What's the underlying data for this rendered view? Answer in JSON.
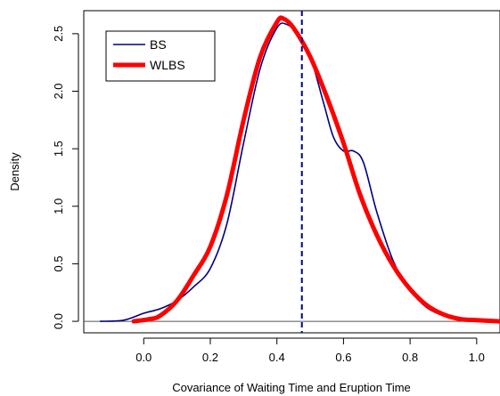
{
  "chart_data": {
    "type": "line",
    "title": "",
    "xlabel": "Covariance of Waiting Time and Eruption Time",
    "ylabel": "Density",
    "xlim": [
      -0.18,
      1.07
    ],
    "ylim": [
      -0.1,
      2.7
    ],
    "xticks": [
      0.0,
      0.2,
      0.4,
      0.6,
      0.8,
      1.0
    ],
    "xtick_labels": [
      "0.0",
      "0.2",
      "0.4",
      "0.6",
      "0.8",
      "1.0"
    ],
    "yticks": [
      0.0,
      0.5,
      1.0,
      1.5,
      2.0,
      2.5
    ],
    "ytick_labels": [
      "0.0",
      "0.5",
      "1.0",
      "1.5",
      "2.0",
      "2.5"
    ],
    "grid": false,
    "legend_position": "top-left",
    "baseline": {
      "y": 0,
      "color": "#555555"
    },
    "vline": {
      "x": 0.475,
      "color": "#000080",
      "style": "dashed"
    },
    "series": [
      {
        "name": "BS",
        "color": "#000080",
        "width": "thin",
        "x": [
          -0.13,
          -0.06,
          0.0,
          0.05,
          0.1,
          0.15,
          0.2,
          0.25,
          0.3,
          0.35,
          0.4,
          0.43,
          0.46,
          0.5,
          0.54,
          0.57,
          0.6,
          0.63,
          0.66,
          0.7,
          0.75,
          0.8,
          0.85,
          0.9,
          0.95,
          1.0,
          1.07
        ],
        "y": [
          0.0,
          0.01,
          0.07,
          0.11,
          0.18,
          0.3,
          0.46,
          0.85,
          1.55,
          2.2,
          2.55,
          2.58,
          2.5,
          2.3,
          1.9,
          1.6,
          1.48,
          1.48,
          1.38,
          0.95,
          0.52,
          0.27,
          0.12,
          0.05,
          0.02,
          0.01,
          0.0
        ]
      },
      {
        "name": "WLBS",
        "color": "#ff0000",
        "width": "thick",
        "x": [
          -0.03,
          0.02,
          0.05,
          0.1,
          0.15,
          0.2,
          0.25,
          0.3,
          0.35,
          0.4,
          0.42,
          0.45,
          0.5,
          0.55,
          0.6,
          0.65,
          0.7,
          0.75,
          0.8,
          0.85,
          0.9,
          0.95,
          1.0,
          1.07
        ],
        "y": [
          0.0,
          0.02,
          0.05,
          0.18,
          0.4,
          0.65,
          1.1,
          1.75,
          2.3,
          2.6,
          2.63,
          2.55,
          2.3,
          1.95,
          1.55,
          1.1,
          0.75,
          0.48,
          0.28,
          0.14,
          0.06,
          0.02,
          0.01,
          0.0
        ]
      }
    ]
  }
}
